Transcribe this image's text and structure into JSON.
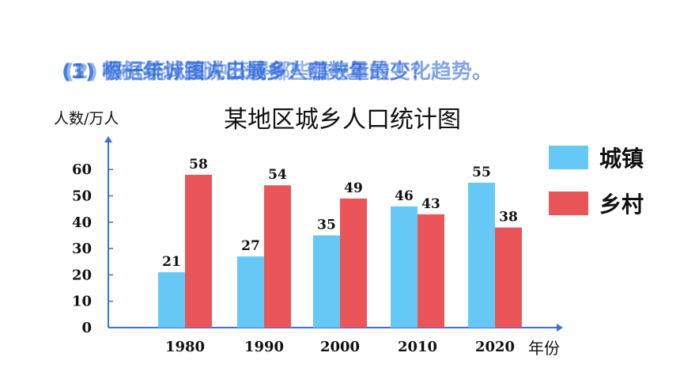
{
  "overlapping_questions": [
    "(1) 哪一年城镇人口最多？哪一年最少？",
    "(2) 你还能从图中获得哪些信息？",
    "(3) 根据统计图说出城乡人口数量的变化趋势。"
  ],
  "colors": {
    "town": "#66c9f5",
    "village": "#ea5559",
    "axis": "#3d6fd9",
    "question": "#1f5fd6"
  },
  "chart_data": {
    "type": "bar",
    "title": "某地区城乡人口统计图",
    "ylabel": "人数/万人",
    "xlabel": "年份",
    "categories": [
      "1980",
      "1990",
      "2000",
      "2010",
      "2020"
    ],
    "series": [
      {
        "name": "城镇",
        "values": [
          21,
          27,
          35,
          46,
          55
        ]
      },
      {
        "name": "乡村",
        "values": [
          58,
          54,
          49,
          43,
          38
        ]
      }
    ],
    "yticks": [
      "0",
      "10",
      "20",
      "30",
      "40",
      "50",
      "60"
    ],
    "ylim": [
      0,
      60
    ],
    "grid": false,
    "legend": "right"
  }
}
